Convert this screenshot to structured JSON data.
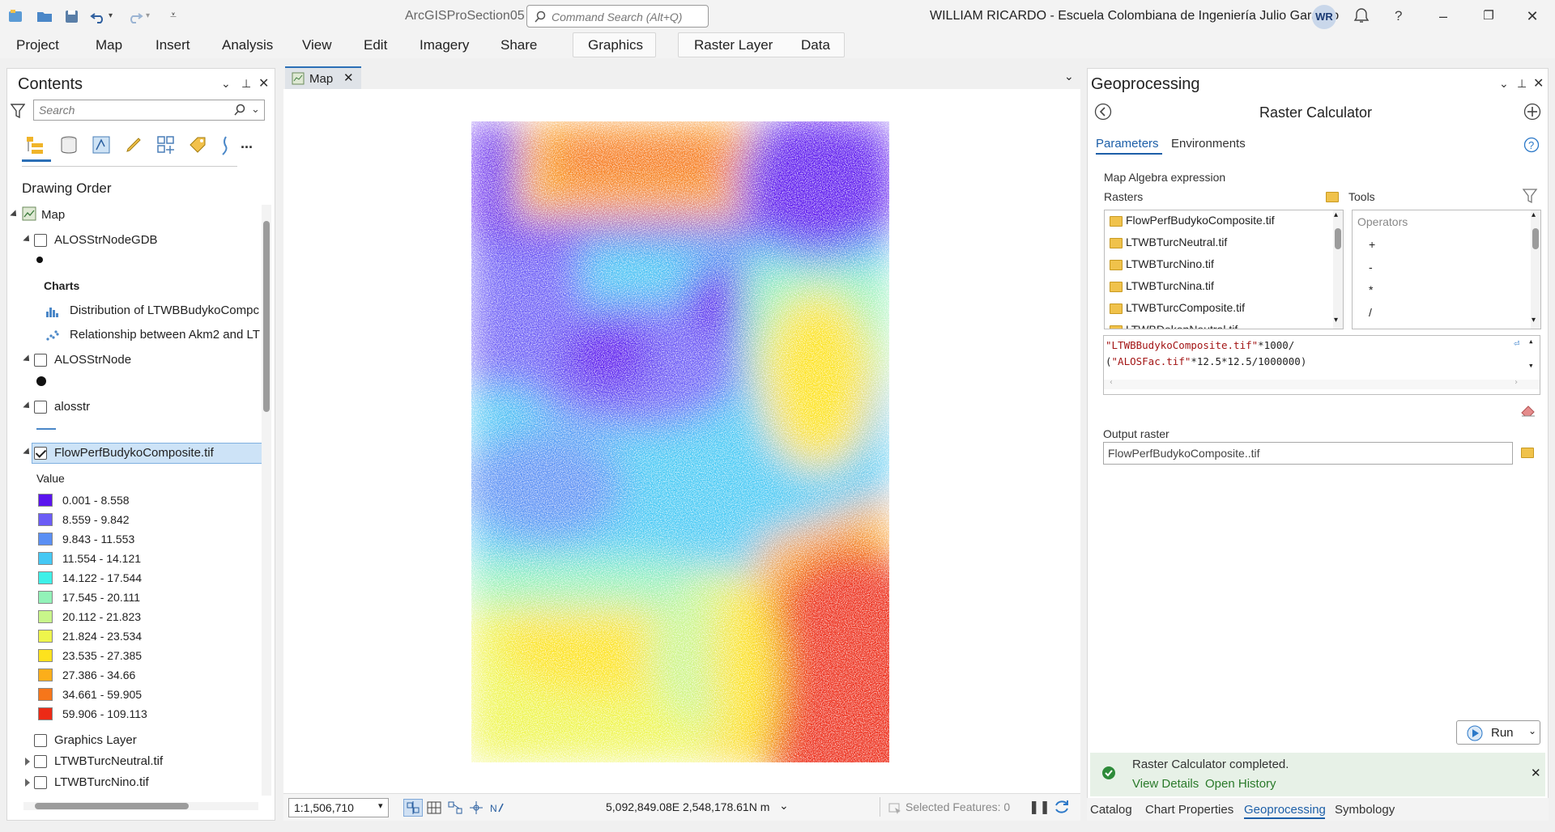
{
  "window": {
    "app_title": "ArcGISProSection05",
    "search_placeholder": "Command Search (Alt+Q)",
    "user": "WILLIAM RICARDO  - Escuela Colombiana de Ingeniería Julio Garavito",
    "avatar_initials": "WR",
    "help": "?"
  },
  "ribbon": {
    "tabs": [
      "Project",
      "Map",
      "Insert",
      "Analysis",
      "View",
      "Edit",
      "Imagery",
      "Share",
      "Graphics",
      "Raster Layer",
      "Data"
    ]
  },
  "contents": {
    "title": "Contents",
    "search_placeholder": "Search",
    "more": "...",
    "drawing_order": "Drawing Order",
    "map_label": "Map",
    "layer1": "ALOSStrNodeGDB",
    "charts_label": "Charts",
    "chart1": "Distribution of LTWBBudykoCompc",
    "chart2": "Relationship between Akm2 and LT",
    "layer2": "ALOSStrNode",
    "layer3": "alosstr",
    "layer4": "FlowPerfBudykoComposite.tif",
    "value_label": "Value",
    "legend": [
      {
        "label": "0.001 - 8.558",
        "color": "#5a14ee"
      },
      {
        "label": "8.559 - 9.842",
        "color": "#6b5cf6"
      },
      {
        "label": "9.843 - 11.553",
        "color": "#5a8ff4"
      },
      {
        "label": "11.554 - 14.121",
        "color": "#45c8f4"
      },
      {
        "label": "14.122 - 17.544",
        "color": "#3ef0e8"
      },
      {
        "label": "17.545 - 20.111",
        "color": "#92f2b8"
      },
      {
        "label": "20.112 - 21.823",
        "color": "#c8f58a"
      },
      {
        "label": "21.824 - 23.534",
        "color": "#eef54c"
      },
      {
        "label": "23.535 - 27.385",
        "color": "#fde21e"
      },
      {
        "label": "27.386 - 34.66",
        "color": "#fcae1a"
      },
      {
        "label": "34.661 - 59.905",
        "color": "#f6761a"
      },
      {
        "label": "59.906 - 109.113",
        "color": "#ec2a16"
      }
    ],
    "layer5": "Graphics Layer",
    "layer6": "LTWBTurcNeutral.tif",
    "layer7": "LTWBTurcNino.tif"
  },
  "map": {
    "tab_label": "Map",
    "scale": "1:1,506,710",
    "coords": "5,092,849.08E 2,548,178.61N m",
    "selected": "Selected Features: 0"
  },
  "geoprocessing": {
    "title": "Geoprocessing",
    "tool_title": "Raster Calculator",
    "tab_parameters": "Parameters",
    "tab_environments": "Environments",
    "map_algebra_label": "Map Algebra expression",
    "rasters_label": "Rasters",
    "tools_label": "Tools",
    "rasters": [
      "FlowPerfBudykoComposite.tif",
      "LTWBTurcNeutral.tif",
      "LTWBTurcNino.tif",
      "LTWBTurcNina.tif",
      "LTWBTurcComposite.tif",
      "LTWBDekenNeutral.tif"
    ],
    "operators_label": "Operators",
    "operators": [
      "+",
      "-",
      "*",
      "/"
    ],
    "expr_line1_str": "\"LTWBBudykoComposite.tif\"",
    "expr_line1_rest": "*1000/",
    "expr_line2_open": "(",
    "expr_line2_str": "\"ALOSFac.tif\"",
    "expr_line2_rest": "*12.5*12.5/1000000)",
    "output_label": "Output raster",
    "output_value": "FlowPerfBudykoComposite..tif",
    "run": "Run",
    "message": "Raster Calculator completed.",
    "view_details": "View Details",
    "open_history": "Open History"
  },
  "bottom_tabs": [
    "Catalog",
    "Chart Properties",
    "Geoprocessing",
    "Symbology"
  ]
}
